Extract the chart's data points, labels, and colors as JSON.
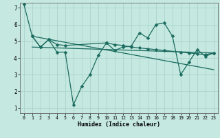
{
  "title": "",
  "xlabel": "Humidex (Indice chaleur)",
  "background_color": "#c5e8e0",
  "grid_color": "#aad4cc",
  "line_color": "#1a6b5e",
  "xlim_min": -0.5,
  "xlim_max": 23.5,
  "ylim_min": 0.7,
  "ylim_max": 7.3,
  "xticks": [
    0,
    1,
    2,
    3,
    4,
    5,
    6,
    7,
    8,
    9,
    10,
    11,
    12,
    13,
    14,
    15,
    16,
    17,
    18,
    19,
    20,
    21,
    22,
    23
  ],
  "yticks": [
    1,
    2,
    3,
    4,
    5,
    6,
    7
  ],
  "line1_x": [
    0,
    1,
    2,
    3,
    4,
    5,
    6,
    7,
    8,
    9,
    10,
    11,
    12,
    13,
    14,
    15,
    16,
    17,
    18,
    19,
    20,
    21,
    22,
    23
  ],
  "line1_y": [
    7.2,
    5.3,
    4.65,
    5.1,
    4.35,
    4.35,
    1.2,
    2.3,
    3.0,
    4.15,
    4.9,
    4.45,
    4.65,
    4.7,
    5.5,
    5.2,
    6.0,
    6.1,
    5.3,
    3.0,
    3.75,
    4.5,
    4.1,
    4.3
  ],
  "line2_x": [
    1,
    2,
    3,
    4,
    5,
    10,
    11,
    12,
    13,
    14,
    15,
    16,
    17,
    19,
    20,
    21,
    22,
    23
  ],
  "line2_y": [
    5.3,
    4.65,
    5.1,
    4.8,
    4.75,
    4.9,
    4.8,
    4.75,
    4.65,
    4.6,
    4.55,
    4.5,
    4.45,
    4.35,
    4.3,
    4.25,
    4.2,
    4.3
  ],
  "line3_x": [
    1,
    23
  ],
  "line3_y": [
    5.3,
    3.3
  ],
  "line4_x": [
    1,
    23
  ],
  "line4_y": [
    4.65,
    4.3
  ]
}
